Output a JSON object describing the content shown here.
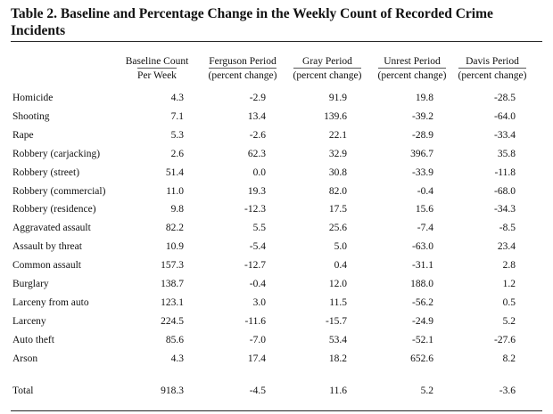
{
  "table": {
    "title": "Table 2.  Baseline and Percentage Change in the Weekly Count of Recorded Crime Incidents",
    "columns": [
      {
        "line1": "Baseline Count",
        "line2": "Per Week"
      },
      {
        "line1": "Ferguson Period",
        "line2": "(percent change)"
      },
      {
        "line1": "Gray Period",
        "line2": "(percent change)"
      },
      {
        "line1": "Unrest Period",
        "line2": "(percent change)"
      },
      {
        "line1": "Davis Period",
        "line2": "(percent change)"
      }
    ],
    "rows": [
      {
        "label": "Homicide",
        "values": [
          "4.3",
          "-2.9",
          "91.9",
          "19.8",
          "-28.5"
        ]
      },
      {
        "label": "Shooting",
        "values": [
          "7.1",
          "13.4",
          "139.6",
          "-39.2",
          "-64.0"
        ]
      },
      {
        "label": "Rape",
        "values": [
          "5.3",
          "-2.6",
          "22.1",
          "-28.9",
          "-33.4"
        ]
      },
      {
        "label": "Robbery (carjacking)",
        "values": [
          "2.6",
          "62.3",
          "32.9",
          "396.7",
          "35.8"
        ]
      },
      {
        "label": "Robbery (street)",
        "values": [
          "51.4",
          "0.0",
          "30.8",
          "-33.9",
          "-11.8"
        ]
      },
      {
        "label": "Robbery (commercial)",
        "values": [
          "11.0",
          "19.3",
          "82.0",
          "-0.4",
          "-68.0"
        ]
      },
      {
        "label": "Robbery (residence)",
        "values": [
          "9.8",
          "-12.3",
          "17.5",
          "15.6",
          "-34.3"
        ]
      },
      {
        "label": "Aggravated assault",
        "values": [
          "82.2",
          "5.5",
          "25.6",
          "-7.4",
          "-8.5"
        ]
      },
      {
        "label": "Assault by threat",
        "values": [
          "10.9",
          "-5.4",
          "5.0",
          "-63.0",
          "23.4"
        ]
      },
      {
        "label": "Common assault",
        "values": [
          "157.3",
          "-12.7",
          "0.4",
          "-31.1",
          "2.8"
        ]
      },
      {
        "label": "Burglary",
        "values": [
          "138.7",
          "-0.4",
          "12.0",
          "188.0",
          "1.2"
        ]
      },
      {
        "label": "Larceny from auto",
        "values": [
          "123.1",
          "3.0",
          "11.5",
          "-56.2",
          "0.5"
        ]
      },
      {
        "label": "Larceny",
        "values": [
          "224.5",
          "-11.6",
          "-15.7",
          "-24.9",
          "5.2"
        ]
      },
      {
        "label": "Auto theft",
        "values": [
          "85.6",
          "-7.0",
          "53.4",
          "-52.1",
          "-27.6"
        ]
      },
      {
        "label": "Arson",
        "values": [
          "4.3",
          "17.4",
          "18.2",
          "652.6",
          "8.2"
        ]
      }
    ],
    "total": {
      "label": "Total",
      "values": [
        "918.3",
        "-4.5",
        "11.6",
        "5.2",
        "-3.6"
      ]
    }
  }
}
